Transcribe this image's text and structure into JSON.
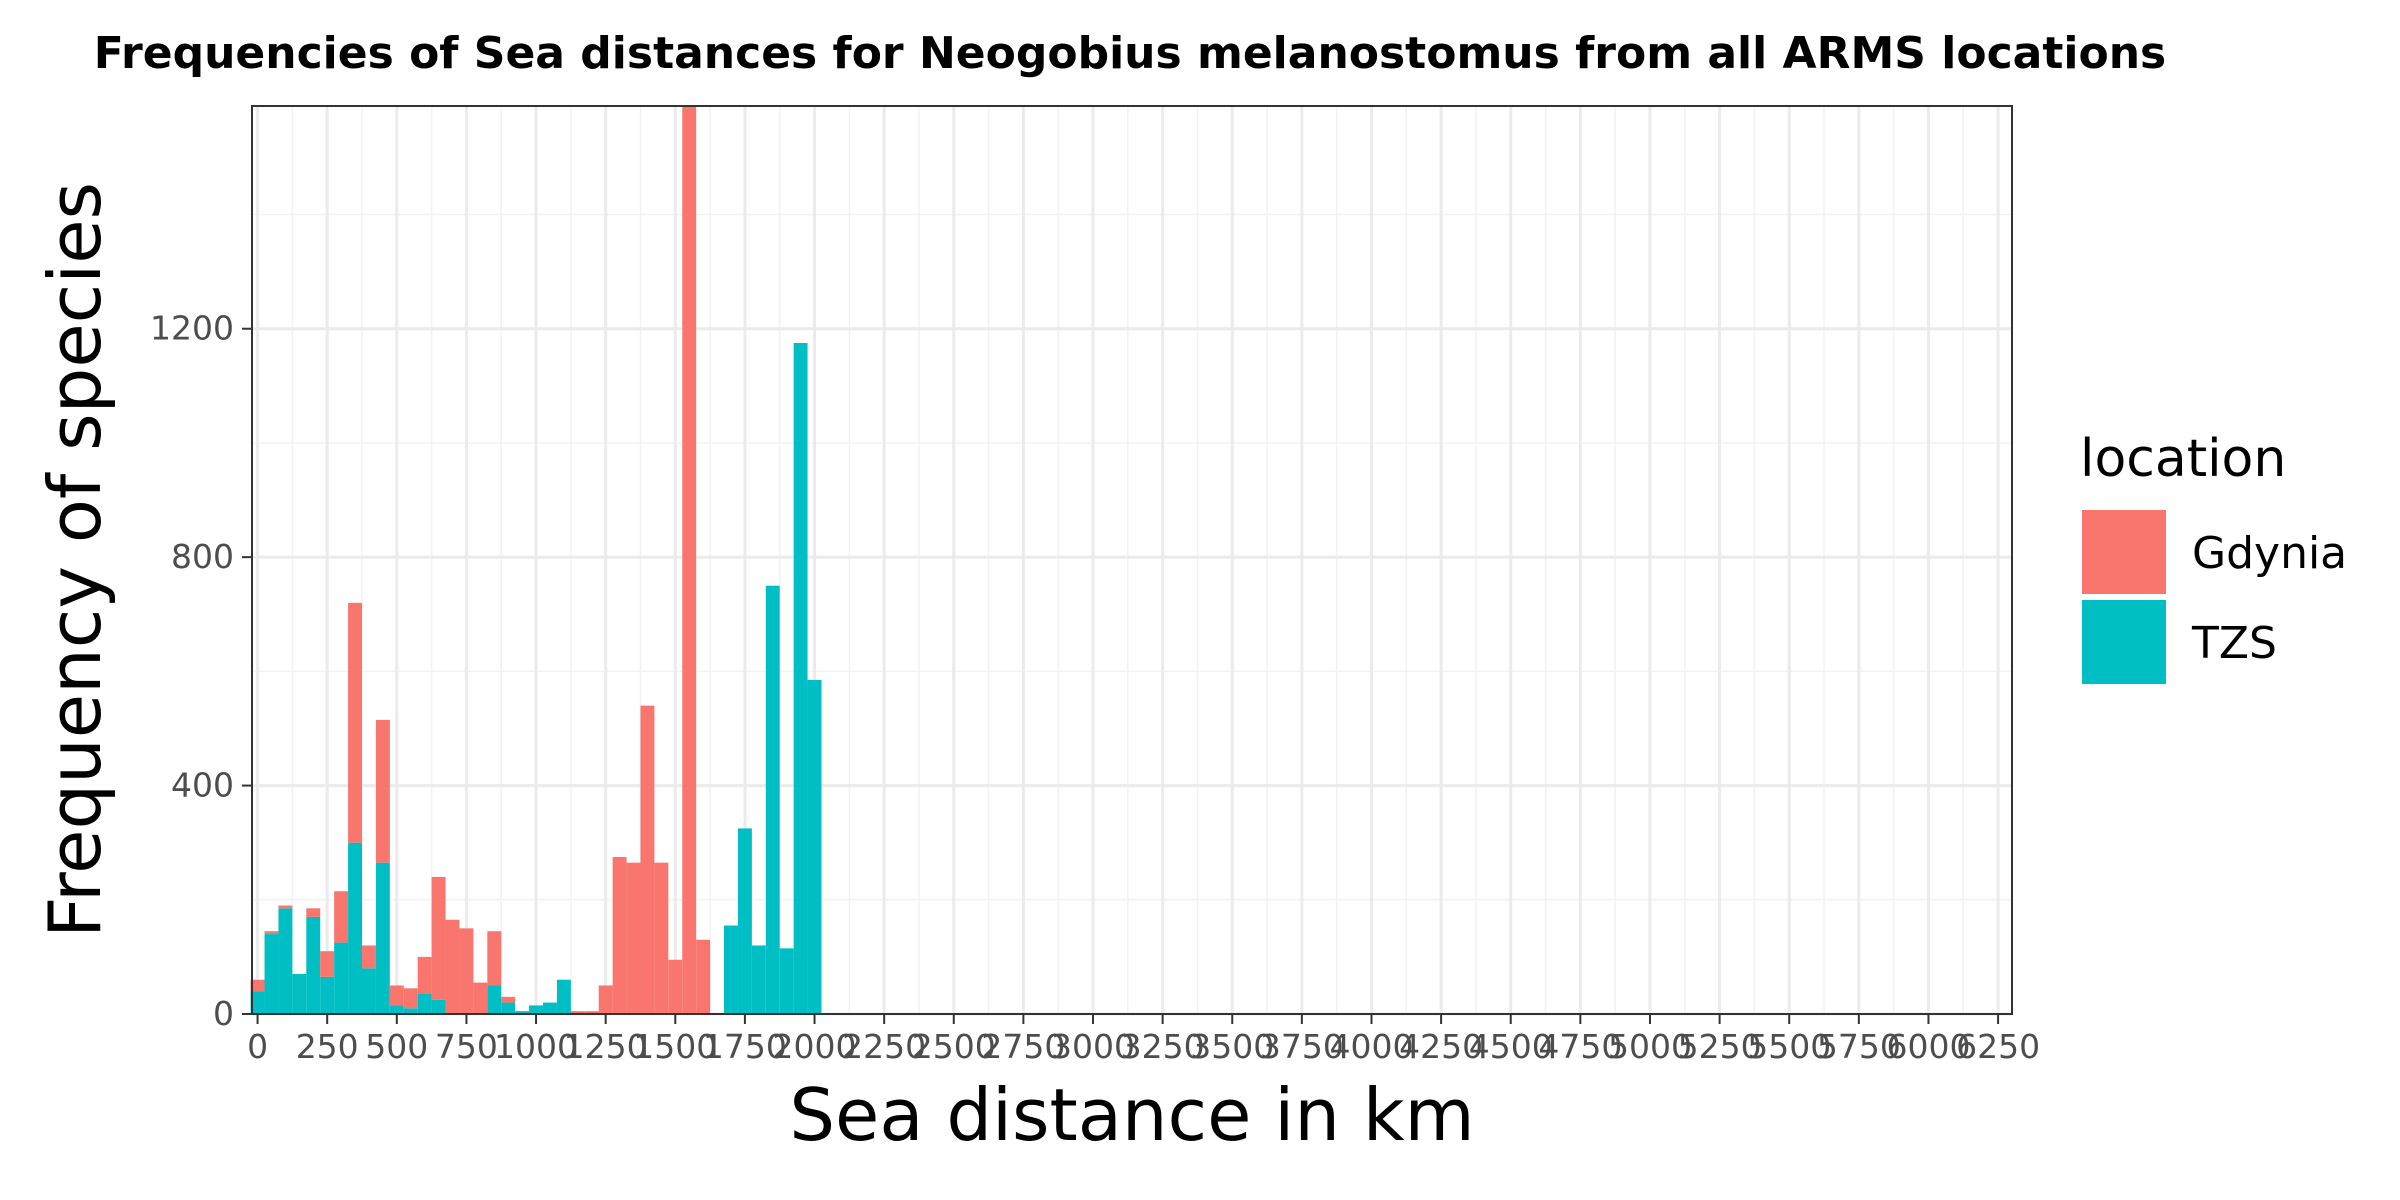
{
  "chart_data": {
    "type": "bar",
    "stacked": true,
    "title": "Frequencies of Sea distances for Neogobius melanostomus from all ARMS locations",
    "xlabel": "Sea distance in km",
    "ylabel": "Frequency of species",
    "xlim": [
      0,
      6300
    ],
    "ylim": [
      0,
      1590
    ],
    "bin_width": 50,
    "x_ticks": [
      0,
      250,
      500,
      750,
      1000,
      1250,
      1500,
      1750,
      2000,
      2250,
      2500,
      2750,
      3000,
      3250,
      3500,
      3750,
      4000,
      4250,
      4500,
      4750,
      5000,
      5250,
      5500,
      5750,
      6000,
      6250
    ],
    "y_ticks": [
      0,
      400,
      800,
      1200
    ],
    "grid": true,
    "legend": {
      "title": "location",
      "position": "right"
    },
    "colors": {
      "Gdynia": "#F8766D",
      "TZS": "#00BFC4"
    },
    "bins": [
      0,
      50,
      100,
      150,
      200,
      250,
      300,
      350,
      400,
      450,
      500,
      550,
      600,
      650,
      700,
      750,
      800,
      850,
      900,
      950,
      1000,
      1050,
      1100,
      1150,
      1200,
      1250,
      1300,
      1350,
      1400,
      1450,
      1500,
      1550,
      1600,
      1650,
      1700,
      1750,
      1800,
      1850,
      1900,
      1950,
      2000
    ],
    "series": [
      {
        "name": "TZS",
        "values": [
          40,
          140,
          185,
          70,
          170,
          65,
          125,
          300,
          80,
          265,
          15,
          10,
          35,
          25,
          0,
          0,
          0,
          50,
          20,
          5,
          15,
          20,
          60,
          0,
          0,
          0,
          0,
          0,
          0,
          0,
          0,
          0,
          0,
          0,
          155,
          325,
          120,
          750,
          115,
          1175,
          585
        ]
      },
      {
        "name": "Gdynia",
        "values": [
          20,
          5,
          5,
          0,
          15,
          45,
          90,
          420,
          40,
          250,
          35,
          35,
          65,
          215,
          165,
          150,
          55,
          95,
          10,
          0,
          0,
          0,
          0,
          5,
          5,
          50,
          275,
          265,
          540,
          265,
          95,
          1590,
          130,
          0,
          0,
          0,
          0,
          0,
          0,
          0,
          0
        ]
      }
    ]
  }
}
